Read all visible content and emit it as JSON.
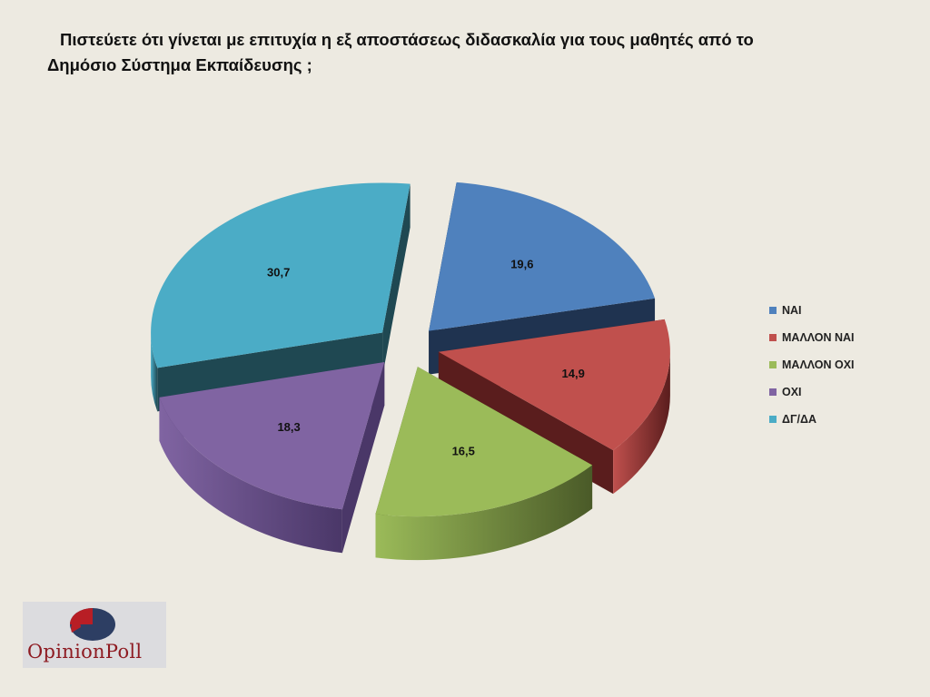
{
  "title": {
    "line1": "Πιστεύετε ότι γίνεται με επιτυχία η εξ αποστάσεως διδασκαλία για τους μαθητές από το",
    "line2": "Δημόσιο Σύστημα Εκπαίδευσης ;"
  },
  "chart_data": {
    "type": "pie",
    "style": "3d-exploded",
    "legend_position": "right",
    "categories": [
      "ΝΑΙ",
      "ΜΑΛΛΟΝ ΝΑΙ",
      "ΜΑΛΛΟΝ ΟΧΙ",
      "ΟΧΙ",
      "ΔΓ/ΔΑ"
    ],
    "values": [
      19.6,
      14.9,
      16.5,
      18.3,
      30.7
    ],
    "data_labels": [
      "19,6",
      "14,9",
      "16,5",
      "18,3",
      "30,7"
    ],
    "colors": [
      "#4f81bd",
      "#c0504d",
      "#9bbb59",
      "#8064a2",
      "#4bacc6"
    ],
    "side_colors": [
      "#1f3350",
      "#5a1d1d",
      "#4a5a28",
      "#4a3768",
      "#1f4852"
    ]
  },
  "logo": {
    "text": "OpinionPoll",
    "colors": {
      "red": "#b81e25",
      "navy": "#2d3e63"
    }
  }
}
